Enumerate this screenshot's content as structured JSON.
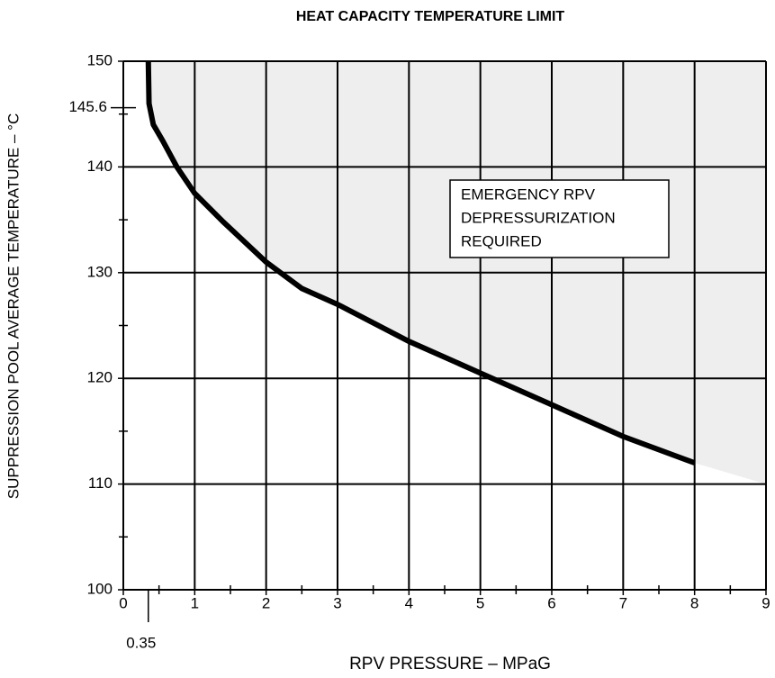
{
  "chart_data": {
    "type": "line",
    "title": "HEAT CAPACITY TEMPERATURE LIMIT",
    "x_label": "RPV PRESSURE – MPaG",
    "y_label": "SUPPRESSION POOL AVERAGE TEMPERATURE – °C",
    "annotation": [
      "EMERGENCY RPV",
      "DEPRESSURIZATION",
      "REQUIRED"
    ],
    "xlim": [
      0,
      9
    ],
    "ylim": [
      100,
      150
    ],
    "xticks": [
      0,
      1,
      2,
      3,
      4,
      5,
      6,
      7,
      8,
      9
    ],
    "yticks": [
      100,
      110,
      120,
      130,
      140,
      150
    ],
    "xminorticks": [
      0.5,
      1.5,
      2.5,
      3.5,
      4.5,
      5.5,
      6.5,
      7.5,
      8.5
    ],
    "yminorticks": [
      105,
      115,
      125,
      135,
      145
    ],
    "xticks_extra": [
      0.35
    ],
    "yticks_extra": [
      145.6
    ],
    "grid": true,
    "series": [
      {
        "name": "Heat capacity temperature limit",
        "color": "#000000",
        "x": [
          0.35,
          0.36,
          0.42,
          0.55,
          0.75,
          1,
          1.4,
          2,
          2.5,
          3,
          4,
          5,
          6,
          7,
          8
        ],
        "values": [
          150,
          146,
          144,
          142.5,
          140,
          137.5,
          134.8,
          131,
          128.5,
          127,
          123.5,
          120.5,
          117.5,
          114.5,
          112
        ]
      }
    ],
    "region": {
      "color": "#eeeeee",
      "x": [
        8,
        9
      ],
      "values": [
        112,
        110
      ]
    }
  }
}
